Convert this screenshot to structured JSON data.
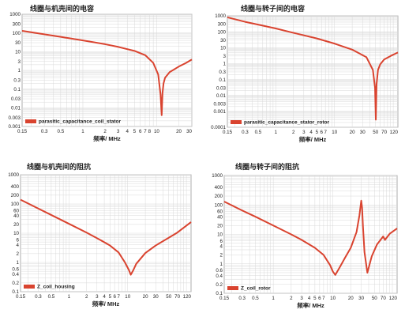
{
  "figure": {
    "background": "#ffffff",
    "line_color": "#d9432f",
    "grid_color": "#d9d9d9",
    "axis_color": "#999999"
  },
  "chart_data": [
    {
      "type": "line",
      "title": "线圈与机壳间的电容",
      "xlabel": "频率/ MHz",
      "ylabel": "",
      "x_scale": "log",
      "y_scale": "log",
      "xlim": [
        0.15,
        30
      ],
      "ylim": [
        0.001,
        1000
      ],
      "grid": true,
      "legend": "bottom-left",
      "x_ticks": [
        "0.15",
        "0.3",
        "0.5",
        "1",
        "2",
        "3",
        "4",
        "5",
        "6",
        "7",
        "8",
        "10",
        "20",
        "30"
      ],
      "y_ticks": [
        "0.001",
        "0.003",
        "0.01",
        "0.03",
        "0.1",
        "0.3",
        "1",
        "3",
        "10",
        "30",
        "100",
        "300",
        "1000"
      ],
      "series": [
        {
          "name": "parasitic_capacitance_coil_stator",
          "x": [
            0.15,
            0.3,
            0.5,
            1,
            2,
            3,
            5,
            7,
            9,
            10.5,
            11.3,
            11.7,
            12,
            12.4,
            13,
            15,
            20,
            25,
            30
          ],
          "y": [
            130,
            85,
            62,
            40,
            25,
            18,
            11,
            6.5,
            2.5,
            0.6,
            0.05,
            0.004,
            0.06,
            0.2,
            0.4,
            0.8,
            1.6,
            2.5,
            3.8
          ]
        }
      ]
    },
    {
      "type": "line",
      "title": "线圈与转子间的电容",
      "xlabel": "频率/ MHz",
      "ylabel": "",
      "x_scale": "log",
      "y_scale": "log",
      "xlim": [
        0.15,
        120
      ],
      "ylim": [
        0.0001,
        1000
      ],
      "grid": true,
      "legend": "bottom-left",
      "x_ticks": [
        "0.15",
        "0.3",
        "0.5",
        "1",
        "2",
        "3",
        "4",
        "5",
        "6",
        "7",
        "10",
        "20",
        "30",
        "50",
        "70",
        "120"
      ],
      "y_ticks": [
        "0.0001",
        "0.001",
        "0.003",
        "0.01",
        "0.03",
        "0.1",
        "0.3",
        "1",
        "3",
        "10",
        "30",
        "100",
        "300",
        "1000"
      ],
      "series": [
        {
          "name": "parasitic_capacitance_stator_rotor",
          "x": [
            0.15,
            0.3,
            0.5,
            1,
            2,
            5,
            10,
            20,
            35,
            45,
            49,
            50.5,
            52,
            55,
            60,
            70,
            90,
            120
          ],
          "y": [
            800,
            420,
            280,
            160,
            85,
            38,
            18,
            7.5,
            2.5,
            0.4,
            0.03,
            0.0003,
            0.05,
            0.4,
            0.9,
            1.8,
            3,
            5
          ]
        }
      ]
    },
    {
      "type": "line",
      "title": "线圈与机壳间的阻抗",
      "xlabel": "频率/ MHz",
      "ylabel": "",
      "x_scale": "log",
      "y_scale": "log",
      "xlim": [
        0.15,
        120
      ],
      "ylim": [
        0.1,
        1000
      ],
      "grid": true,
      "legend": "bottom-left",
      "x_ticks": [
        "0.15",
        "0.3",
        "0.5",
        "1",
        "2",
        "3",
        "4",
        "5",
        "6",
        "7",
        "10",
        "20",
        "30",
        "50",
        "70",
        "120"
      ],
      "y_ticks": [
        "0.1",
        "0.2",
        "0.4",
        "0.6",
        "1",
        "2",
        "4",
        "6",
        "10",
        "20",
        "40",
        "60",
        "100",
        "200",
        "400",
        "1000"
      ],
      "series": [
        {
          "name": "Z_coil_housing",
          "x": [
            0.15,
            0.3,
            0.5,
            1,
            2,
            3,
            5,
            7,
            9,
            10.5,
            11.3,
            12.5,
            14,
            20,
            30,
            50,
            70,
            120
          ],
          "y": [
            140,
            70,
            42,
            21,
            10.5,
            6.8,
            3.8,
            2.2,
            1,
            0.55,
            0.38,
            0.55,
            0.9,
            2.1,
            3.8,
            7,
            10.5,
            24
          ]
        }
      ]
    },
    {
      "type": "line",
      "title": "线圈与转子间的阻抗",
      "xlabel": "频率/ MHz",
      "ylabel": "",
      "x_scale": "log",
      "y_scale": "log",
      "xlim": [
        0.15,
        120
      ],
      "ylim": [
        0.1,
        1000
      ],
      "grid": true,
      "legend": "bottom-left",
      "x_ticks": [
        "0.15",
        "0.3",
        "0.5",
        "1",
        "2",
        "3",
        "4",
        "5",
        "6",
        "7",
        "10",
        "20",
        "30",
        "50",
        "70",
        "120"
      ],
      "y_ticks": [
        "0.1",
        "0.2",
        "0.4",
        "0.6",
        "1",
        "2",
        "4",
        "6",
        "10",
        "20",
        "40",
        "60",
        "100",
        "200",
        "400",
        "1000"
      ],
      "series": [
        {
          "name": "Z_coil_rotor",
          "x": [
            0.15,
            0.3,
            0.5,
            1,
            2,
            3,
            5,
            7,
            9,
            10,
            11,
            13,
            16,
            20,
            25,
            28,
            30,
            31,
            32,
            34,
            38,
            45,
            55,
            70,
            75,
            90,
            120
          ],
          "y": [
            130,
            65,
            40,
            20,
            10,
            6.5,
            3.5,
            2,
            0.9,
            0.55,
            0.42,
            0.75,
            1.6,
            3.5,
            12,
            45,
            140,
            80,
            20,
            2.5,
            0.5,
            1.8,
            4.5,
            8.5,
            6.5,
            10.5,
            16
          ]
        }
      ]
    }
  ]
}
